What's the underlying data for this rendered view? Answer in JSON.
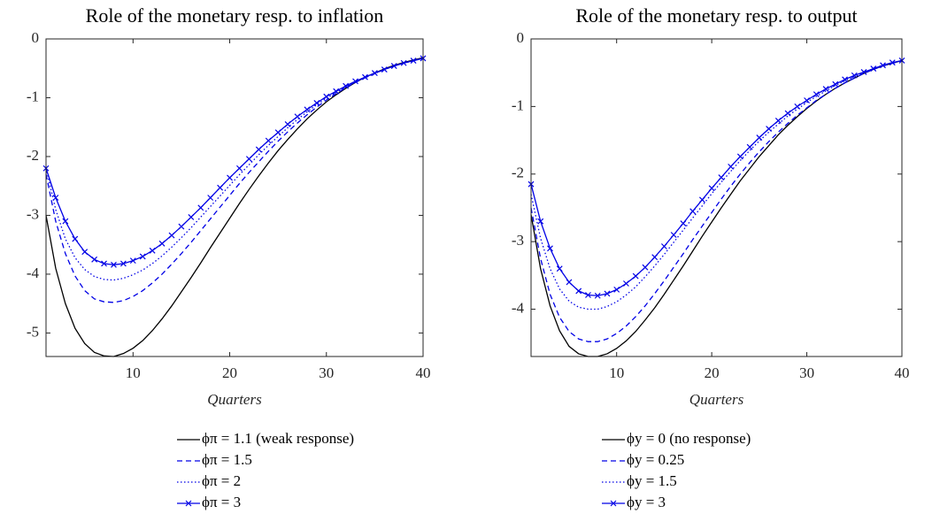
{
  "chart_data": [
    {
      "type": "line",
      "title": "Role of the monetary resp. to inflation",
      "xlabel": "Quarters",
      "x": [
        1,
        2,
        3,
        4,
        5,
        6,
        7,
        8,
        9,
        10,
        11,
        12,
        13,
        14,
        15,
        16,
        17,
        18,
        19,
        20,
        21,
        22,
        23,
        24,
        25,
        26,
        27,
        28,
        29,
        30,
        31,
        32,
        33,
        34,
        35,
        36,
        37,
        38,
        39,
        40
      ],
      "xlim": [
        1,
        40
      ],
      "xticks": [
        10,
        20,
        30,
        40
      ],
      "ylim": [
        -5.4,
        0
      ],
      "yticks": [
        0,
        -1,
        -2,
        -3,
        -4,
        -5
      ],
      "series": [
        {
          "name": "ϕπ = 1.1 (weak response)",
          "color": "#000000",
          "linestyle": "solid",
          "marker": "none",
          "values": [
            -3.0,
            -3.9,
            -4.5,
            -4.92,
            -5.18,
            -5.33,
            -5.39,
            -5.4,
            -5.35,
            -5.26,
            -5.13,
            -4.96,
            -4.76,
            -4.54,
            -4.3,
            -4.06,
            -3.81,
            -3.55,
            -3.3,
            -3.05,
            -2.8,
            -2.56,
            -2.33,
            -2.11,
            -1.9,
            -1.71,
            -1.53,
            -1.36,
            -1.21,
            -1.07,
            -0.95,
            -0.84,
            -0.74,
            -0.65,
            -0.58,
            -0.51,
            -0.45,
            -0.4,
            -0.36,
            -0.32
          ]
        },
        {
          "name": "ϕπ = 1.5",
          "color": "#0000e6",
          "linestyle": "dashed",
          "marker": "none",
          "values": [
            -2.3,
            -3.1,
            -3.65,
            -4.03,
            -4.28,
            -4.42,
            -4.47,
            -4.48,
            -4.45,
            -4.38,
            -4.28,
            -4.15,
            -4.0,
            -3.83,
            -3.65,
            -3.46,
            -3.26,
            -3.06,
            -2.86,
            -2.66,
            -2.46,
            -2.27,
            -2.09,
            -1.91,
            -1.74,
            -1.58,
            -1.43,
            -1.29,
            -1.16,
            -1.04,
            -0.93,
            -0.83,
            -0.74,
            -0.66,
            -0.59,
            -0.52,
            -0.46,
            -0.41,
            -0.37,
            -0.33
          ]
        },
        {
          "name": "ϕπ = 2",
          "color": "#0000e6",
          "linestyle": "dotted",
          "marker": "none",
          "values": [
            -2.2,
            -2.9,
            -3.4,
            -3.72,
            -3.92,
            -4.04,
            -4.09,
            -4.1,
            -4.07,
            -4.01,
            -3.93,
            -3.82,
            -3.69,
            -3.54,
            -3.38,
            -3.21,
            -3.03,
            -2.85,
            -2.67,
            -2.49,
            -2.31,
            -2.14,
            -1.97,
            -1.81,
            -1.66,
            -1.51,
            -1.37,
            -1.24,
            -1.12,
            -1.01,
            -0.91,
            -0.82,
            -0.73,
            -0.66,
            -0.59,
            -0.52,
            -0.46,
            -0.41,
            -0.37,
            -0.33
          ]
        },
        {
          "name": "ϕπ = 3",
          "color": "#0000e6",
          "linestyle": "solid",
          "marker": "x",
          "values": [
            -2.2,
            -2.7,
            -3.1,
            -3.4,
            -3.62,
            -3.75,
            -3.82,
            -3.84,
            -3.82,
            -3.77,
            -3.7,
            -3.6,
            -3.48,
            -3.34,
            -3.19,
            -3.03,
            -2.87,
            -2.7,
            -2.53,
            -2.36,
            -2.2,
            -2.04,
            -1.88,
            -1.73,
            -1.59,
            -1.45,
            -1.32,
            -1.2,
            -1.09,
            -0.98,
            -0.89,
            -0.8,
            -0.72,
            -0.65,
            -0.58,
            -0.52,
            -0.46,
            -0.41,
            -0.37,
            -0.33
          ]
        }
      ]
    },
    {
      "type": "line",
      "title": "Role of the monetary resp. to output",
      "xlabel": "Quarters",
      "x": [
        1,
        2,
        3,
        4,
        5,
        6,
        7,
        8,
        9,
        10,
        11,
        12,
        13,
        14,
        15,
        16,
        17,
        18,
        19,
        20,
        21,
        22,
        23,
        24,
        25,
        26,
        27,
        28,
        29,
        30,
        31,
        32,
        33,
        34,
        35,
        36,
        37,
        38,
        39,
        40
      ],
      "xlim": [
        1,
        40
      ],
      "xticks": [
        10,
        20,
        30,
        40
      ],
      "ylim": [
        -4.7,
        0
      ],
      "yticks": [
        0,
        -1,
        -2,
        -3,
        -4
      ],
      "series": [
        {
          "name": "ϕy = 0 (no response)",
          "color": "#000000",
          "linestyle": "solid",
          "marker": "none",
          "values": [
            -2.6,
            -3.4,
            -3.95,
            -4.32,
            -4.55,
            -4.66,
            -4.7,
            -4.7,
            -4.66,
            -4.58,
            -4.47,
            -4.33,
            -4.16,
            -3.98,
            -3.78,
            -3.57,
            -3.36,
            -3.14,
            -2.92,
            -2.71,
            -2.5,
            -2.3,
            -2.1,
            -1.92,
            -1.74,
            -1.58,
            -1.42,
            -1.28,
            -1.15,
            -1.03,
            -0.92,
            -0.82,
            -0.73,
            -0.65,
            -0.58,
            -0.51,
            -0.45,
            -0.4,
            -0.36,
            -0.32
          ]
        },
        {
          "name": "ϕy = 0.25",
          "color": "#0000e6",
          "linestyle": "dashed",
          "marker": "none",
          "values": [
            -2.5,
            -3.25,
            -3.78,
            -4.12,
            -4.33,
            -4.44,
            -4.48,
            -4.48,
            -4.44,
            -4.36,
            -4.25,
            -4.11,
            -3.95,
            -3.77,
            -3.58,
            -3.38,
            -3.18,
            -2.97,
            -2.77,
            -2.57,
            -2.37,
            -2.18,
            -2.0,
            -1.83,
            -1.67,
            -1.52,
            -1.38,
            -1.25,
            -1.13,
            -1.02,
            -0.91,
            -0.82,
            -0.73,
            -0.65,
            -0.58,
            -0.51,
            -0.45,
            -0.4,
            -0.36,
            -0.32
          ]
        },
        {
          "name": "ϕy = 1.5",
          "color": "#0000e6",
          "linestyle": "dotted",
          "marker": "none",
          "values": [
            -2.3,
            -2.95,
            -3.4,
            -3.7,
            -3.88,
            -3.97,
            -4.0,
            -4.0,
            -3.96,
            -3.89,
            -3.79,
            -3.67,
            -3.52,
            -3.36,
            -3.19,
            -3.01,
            -2.83,
            -2.65,
            -2.47,
            -2.29,
            -2.12,
            -1.96,
            -1.8,
            -1.65,
            -1.51,
            -1.38,
            -1.26,
            -1.14,
            -1.04,
            -0.94,
            -0.85,
            -0.77,
            -0.69,
            -0.62,
            -0.56,
            -0.5,
            -0.44,
            -0.39,
            -0.35,
            -0.32
          ]
        },
        {
          "name": "ϕy = 3",
          "color": "#0000e6",
          "linestyle": "solid",
          "marker": "x",
          "values": [
            -2.15,
            -2.7,
            -3.1,
            -3.4,
            -3.6,
            -3.73,
            -3.79,
            -3.8,
            -3.77,
            -3.71,
            -3.62,
            -3.51,
            -3.38,
            -3.23,
            -3.07,
            -2.9,
            -2.73,
            -2.55,
            -2.38,
            -2.21,
            -2.05,
            -1.89,
            -1.74,
            -1.6,
            -1.46,
            -1.33,
            -1.21,
            -1.1,
            -1.0,
            -0.91,
            -0.82,
            -0.74,
            -0.67,
            -0.6,
            -0.54,
            -0.49,
            -0.44,
            -0.39,
            -0.35,
            -0.32
          ]
        }
      ]
    }
  ]
}
